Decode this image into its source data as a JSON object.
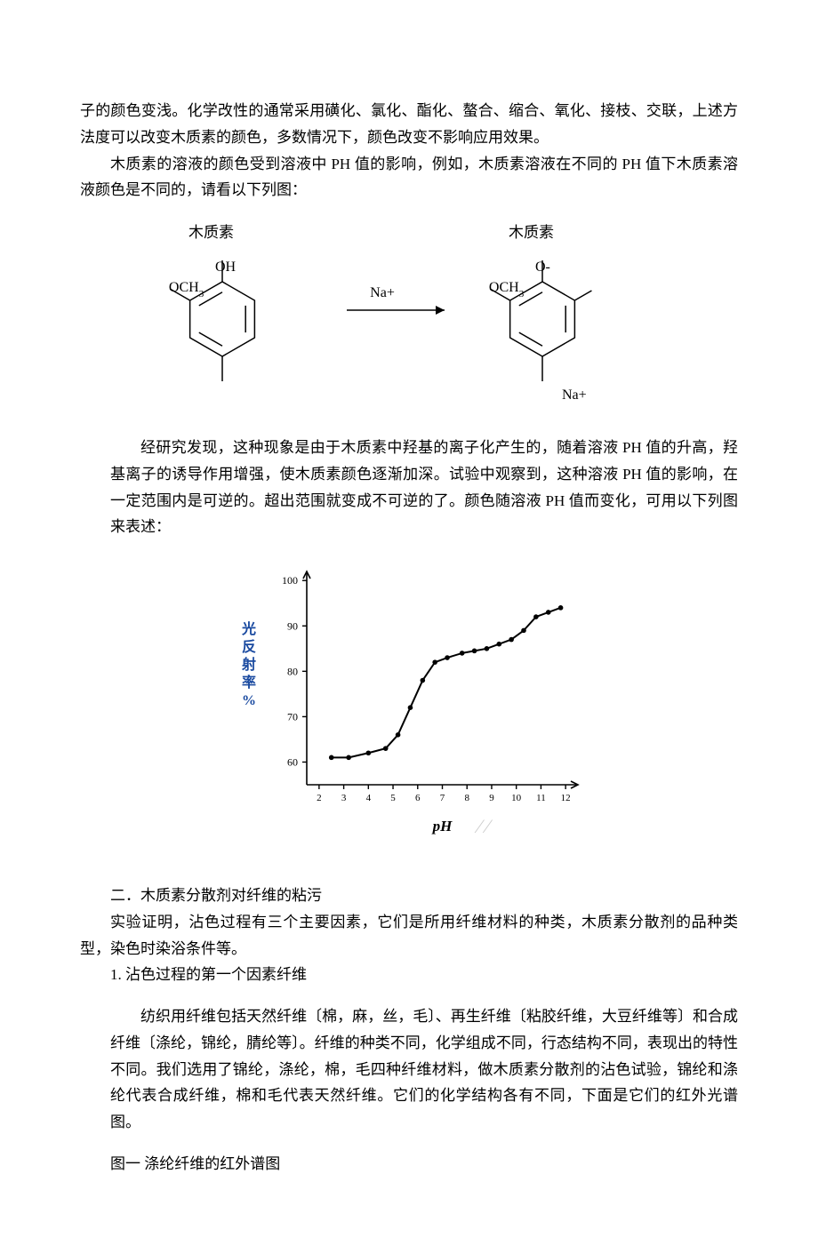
{
  "paragraphs": {
    "p1a": "子的颜色变浅。化学改性的通常采用磺化、氯化、酯化、螯合、缩合、氧化、接枝、交联，上述方法度可以改变木质素的颜色，多数情况下，颜色改变不影响应用效果。",
    "p1b": "木质素的溶液的颜色受到溶液中 PH 值的影响，例如，木质素溶液在不同的 PH 值下木质素溶液颜色是不同的，请看以下列图：",
    "p2": "经研究发现，这种现象是由于木质素中羟基的离子化产生的，随着溶液 PH 值的升高，羟基离子的诱导作用增强，使木质素颜色逐渐加深。试验中观察到，这种溶液 PH 值的影响，在一定范围内是可逆的。超出范围就变成不可逆的了。颜色随溶液 PH 值而变化，可用以下列图来表述：",
    "sec2_title": "二．木质素分散剂对纤维的粘污",
    "sec2_p1": "实验证明，沾色过程有三个主要因素，它们是所用纤维材料的种类，木质素分散剂的品种类型，染色时染浴条件等。",
    "sub1_title": "1.  沾色过程的第一个因素纤维",
    "sub1_body": "纺织用纤维包括天然纤维〔棉，麻，丝，毛〕、再生纤维〔粘胶纤维，大豆纤维等〕和合成纤维〔涤纶，锦纶，腈纶等〕。纤维的种类不同，化学组成不同，行态结构不同，表现出的特性不同。我们选用了锦纶，涤纶，棉，毛四种纤维材料，做木质素分散剂的沾色试验，锦纶和涤纶代表合成纤维，棉和毛代表天然纤维。它们的化学结构各有不同，下面是它们的红外光谱图。",
    "fig1_caption": "图一 涤纶纤维的红外谱图"
  },
  "reaction": {
    "left_label": "木质素",
    "right_label": "木质素",
    "och3": "OCH",
    "och3_sub": "3",
    "oh": "OH",
    "o_minus": "O-",
    "na_plus_arrow": "Na+",
    "na_plus_prod": "Na+",
    "stroke": "#000000",
    "stroke_width": 1.5,
    "font_family": "Times New Roman, serif",
    "label_family": "SimSun, serif"
  },
  "chart": {
    "type": "line-scatter",
    "xlabel": "pH",
    "ylabel_chars": [
      "光",
      "反",
      "射",
      "率",
      "%"
    ],
    "ylabel_color": "#1a4aa0",
    "x_ticks": [
      2,
      3,
      4,
      5,
      6,
      7,
      8,
      9,
      10,
      11,
      12
    ],
    "y_ticks_vals": [
      60,
      70,
      80,
      90,
      100
    ],
    "y_ticks_labels": [
      "60",
      "70",
      "80",
      "90",
      "100"
    ],
    "points": [
      {
        "x": 2.5,
        "y": 61
      },
      {
        "x": 3.2,
        "y": 61
      },
      {
        "x": 4.0,
        "y": 62
      },
      {
        "x": 4.7,
        "y": 63
      },
      {
        "x": 5.2,
        "y": 66
      },
      {
        "x": 5.7,
        "y": 72
      },
      {
        "x": 6.2,
        "y": 78
      },
      {
        "x": 6.7,
        "y": 82
      },
      {
        "x": 7.2,
        "y": 83
      },
      {
        "x": 7.8,
        "y": 84
      },
      {
        "x": 8.3,
        "y": 84.5
      },
      {
        "x": 8.8,
        "y": 85
      },
      {
        "x": 9.3,
        "y": 86
      },
      {
        "x": 9.8,
        "y": 87
      },
      {
        "x": 10.3,
        "y": 89
      },
      {
        "x": 10.8,
        "y": 92
      },
      {
        "x": 11.3,
        "y": 93
      },
      {
        "x": 11.8,
        "y": 94
      }
    ],
    "line_color": "#000000",
    "point_color": "#000000",
    "axis_color": "#000000",
    "bg": "#ffffff",
    "xlim": [
      1.5,
      12.5
    ],
    "ylim": [
      55,
      102
    ],
    "line_width": 2,
    "marker_r": 2.8,
    "font_family_label": "Times New Roman, serif"
  }
}
